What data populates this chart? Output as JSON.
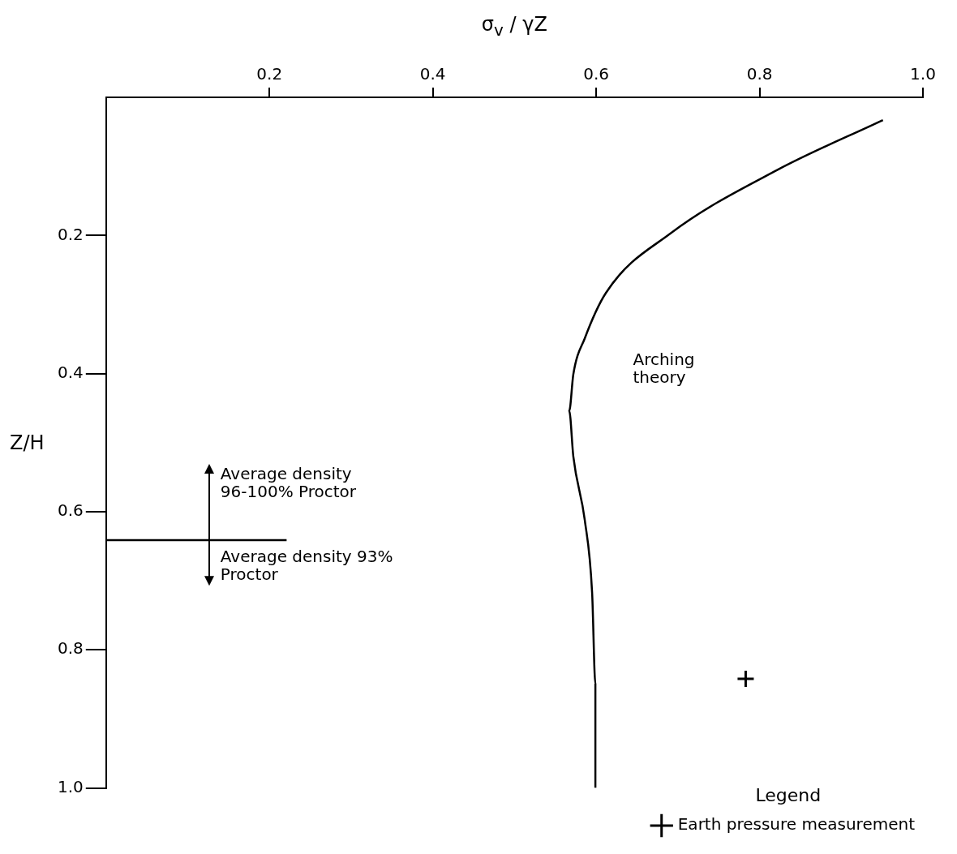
{
  "chart_data": {
    "type": "line",
    "xlabel": "σ$_{v}$ / γZ",
    "ylabel": "Z/H",
    "xlim": [
      0,
      1.0
    ],
    "xticks": [
      {
        "value": 0.2,
        "label": "0.2"
      },
      {
        "value": 0.4,
        "label": "0.4"
      },
      {
        "value": 0.6,
        "label": "0.6"
      },
      {
        "value": 0.8,
        "label": "0.8"
      },
      {
        "value": 1.0,
        "label": "1.0"
      }
    ],
    "ylim": [
      1.0,
      0
    ],
    "yticks": [
      {
        "value": 0.2,
        "label": "0.2"
      },
      {
        "value": 0.4,
        "label": "0.4"
      },
      {
        "value": 0.6,
        "label": "0.6"
      },
      {
        "value": 0.8,
        "label": "0.8"
      },
      {
        "value": 1.0,
        "label": "1.0"
      }
    ],
    "grid": false,
    "legend": "bottom right",
    "legend_title": "Legend",
    "series": [
      {
        "color": "#000000",
        "x": [
          0.951,
          0.822,
          0.691,
          0.612,
          0.586,
          0.572,
          0.567,
          0.572,
          0.586,
          0.595,
          0.599,
          0.599
        ],
        "values": [
          0.033,
          0.105,
          0.197,
          0.283,
          0.349,
          0.401,
          0.454,
          0.52,
          0.612,
          0.717,
          0.849,
          1.0
        ]
      },
      {
        "color": "#000000",
        "x": [
          0,
          0.221
        ],
        "values": [
          0.641,
          0.641
        ]
      },
      {
        "type": "scatter",
        "name": "Earth pressure measurement",
        "color": "#000000",
        "marker": "cross",
        "x": [
          0.783
        ],
        "values": [
          0.842
        ]
      }
    ],
    "annotations": [
      "Arching theory",
      "Average density 96-100% Proctor",
      "Average density 93% Proctor"
    ]
  }
}
